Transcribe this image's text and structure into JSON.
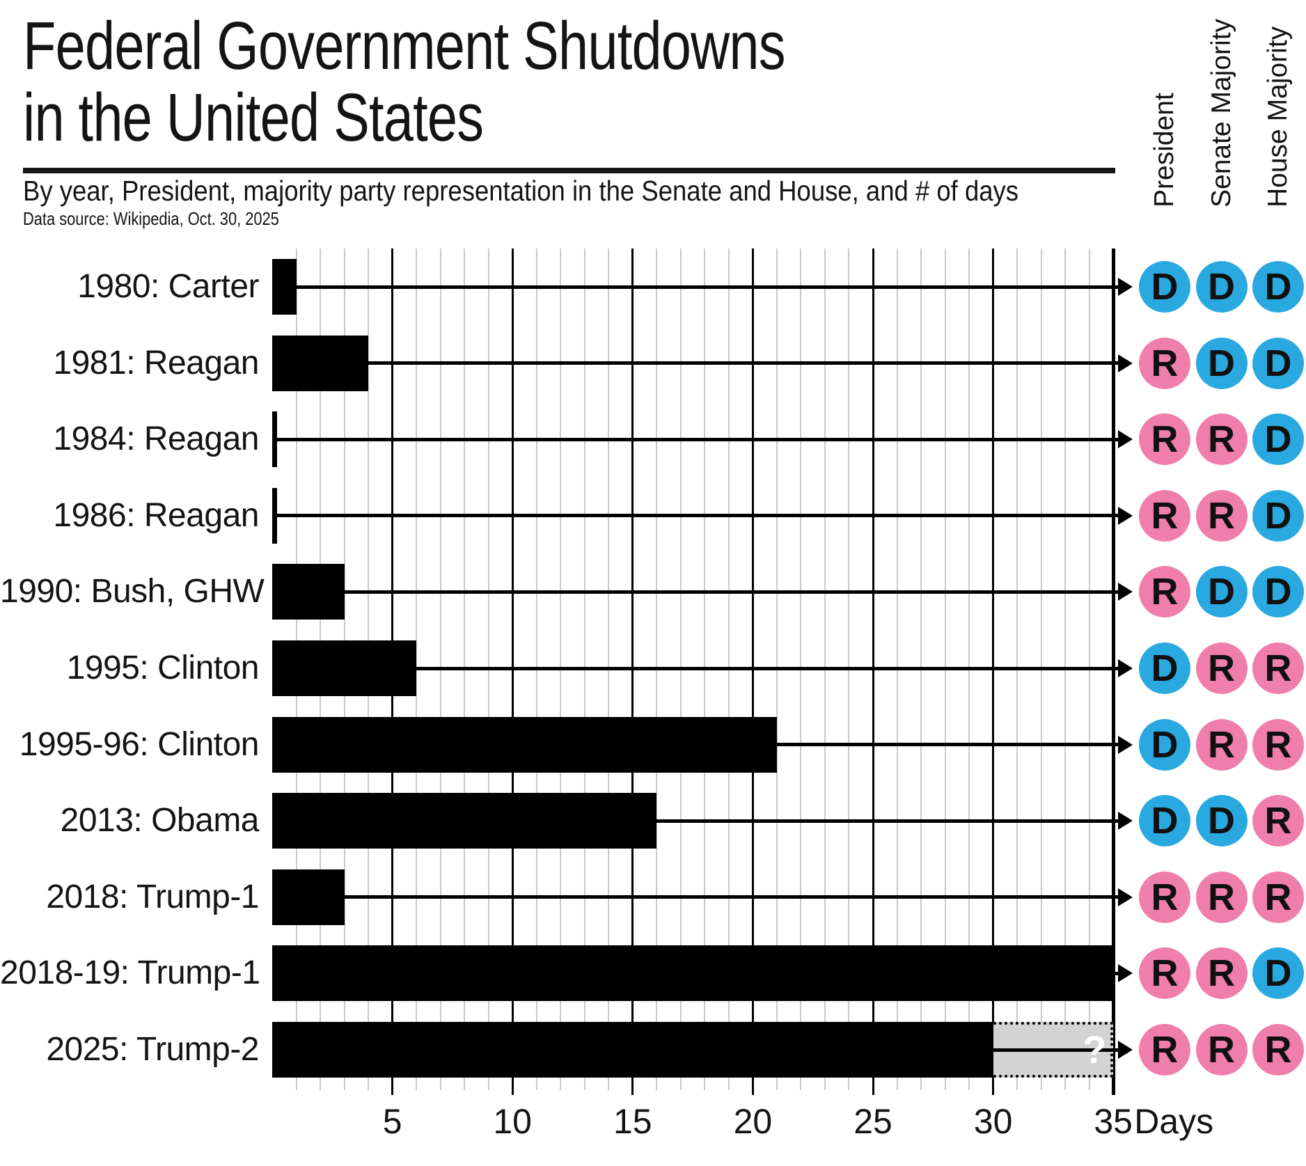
{
  "chart_data": {
    "type": "bar",
    "orientation": "horizontal",
    "title_line1": "Federal Government Shutdowns",
    "title_line2": "in the United States",
    "subtitle": "By year, President, majority party representation in the Senate and House, and # of days",
    "source": "Data source: Wikipedia, Oct. 30, 2025",
    "xlabel": "Days",
    "xlim": [
      0,
      35
    ],
    "xticks": [
      5,
      10,
      15,
      20,
      25,
      30,
      35
    ],
    "grid": "vertical; minor line each day, major black line every 5 days",
    "legend_position": "none",
    "party_columns": [
      "President",
      "Senate Majority",
      "House Majority"
    ],
    "colors": {
      "democrat": "#29a9e0",
      "republican": "#f07eab",
      "bar": "#000000",
      "provisional_fill": "#d3d3d3",
      "grid_minor": "#c9c9c9",
      "grid_major": "#000000"
    },
    "rows": [
      {
        "label": "1980: Carter",
        "days": 1,
        "parties": [
          "D",
          "D",
          "D"
        ]
      },
      {
        "label": "1981: Reagan",
        "days": 4,
        "parties": [
          "R",
          "D",
          "D"
        ]
      },
      {
        "label": "1984: Reagan",
        "days": 0.2,
        "parties": [
          "R",
          "R",
          "D"
        ]
      },
      {
        "label": "1986: Reagan",
        "days": 0.2,
        "parties": [
          "R",
          "R",
          "D"
        ]
      },
      {
        "label": "1990: Bush, GHW",
        "days": 3,
        "parties": [
          "R",
          "D",
          "D"
        ]
      },
      {
        "label": "1995: Clinton",
        "days": 6,
        "parties": [
          "D",
          "R",
          "R"
        ]
      },
      {
        "label": "1995-96: Clinton",
        "days": 21,
        "parties": [
          "D",
          "R",
          "R"
        ]
      },
      {
        "label": "2013: Obama",
        "days": 16,
        "parties": [
          "D",
          "D",
          "R"
        ]
      },
      {
        "label": "2018: Trump-1",
        "days": 3,
        "parties": [
          "R",
          "R",
          "R"
        ]
      },
      {
        "label": "2018-19: Trump-1",
        "days": 35,
        "parties": [
          "R",
          "R",
          "D"
        ]
      },
      {
        "label": "2025: Trump-2",
        "days": 30,
        "parties": [
          "R",
          "R",
          "R"
        ],
        "provisional": {
          "from": 30,
          "to": 35,
          "label": "?"
        }
      }
    ]
  }
}
